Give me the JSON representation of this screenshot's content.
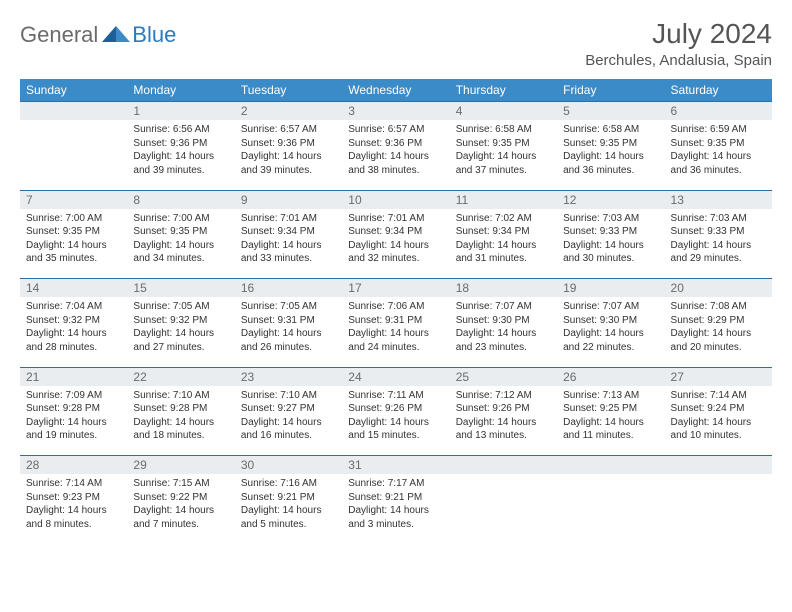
{
  "logo": {
    "text1": "General",
    "text2": "Blue"
  },
  "title": {
    "month": "July 2024",
    "location": "Berchules, Andalusia, Spain"
  },
  "colors": {
    "header_bg": "#3b8bc9",
    "header_text": "#ffffff",
    "daynum_bg": "#e9edf0",
    "daynum_text": "#6b6b6b",
    "border": "#2e6fa3",
    "body_text": "#333333",
    "logo_gray": "#6b6b6b",
    "logo_blue": "#2a7bbf"
  },
  "weekdays": [
    "Sunday",
    "Monday",
    "Tuesday",
    "Wednesday",
    "Thursday",
    "Friday",
    "Saturday"
  ],
  "weeks": [
    [
      null,
      {
        "n": "1",
        "sr": "Sunrise: 6:56 AM",
        "ss": "Sunset: 9:36 PM",
        "d1": "Daylight: 14 hours",
        "d2": "and 39 minutes."
      },
      {
        "n": "2",
        "sr": "Sunrise: 6:57 AM",
        "ss": "Sunset: 9:36 PM",
        "d1": "Daylight: 14 hours",
        "d2": "and 39 minutes."
      },
      {
        "n": "3",
        "sr": "Sunrise: 6:57 AM",
        "ss": "Sunset: 9:36 PM",
        "d1": "Daylight: 14 hours",
        "d2": "and 38 minutes."
      },
      {
        "n": "4",
        "sr": "Sunrise: 6:58 AM",
        "ss": "Sunset: 9:35 PM",
        "d1": "Daylight: 14 hours",
        "d2": "and 37 minutes."
      },
      {
        "n": "5",
        "sr": "Sunrise: 6:58 AM",
        "ss": "Sunset: 9:35 PM",
        "d1": "Daylight: 14 hours",
        "d2": "and 36 minutes."
      },
      {
        "n": "6",
        "sr": "Sunrise: 6:59 AM",
        "ss": "Sunset: 9:35 PM",
        "d1": "Daylight: 14 hours",
        "d2": "and 36 minutes."
      }
    ],
    [
      {
        "n": "7",
        "sr": "Sunrise: 7:00 AM",
        "ss": "Sunset: 9:35 PM",
        "d1": "Daylight: 14 hours",
        "d2": "and 35 minutes."
      },
      {
        "n": "8",
        "sr": "Sunrise: 7:00 AM",
        "ss": "Sunset: 9:35 PM",
        "d1": "Daylight: 14 hours",
        "d2": "and 34 minutes."
      },
      {
        "n": "9",
        "sr": "Sunrise: 7:01 AM",
        "ss": "Sunset: 9:34 PM",
        "d1": "Daylight: 14 hours",
        "d2": "and 33 minutes."
      },
      {
        "n": "10",
        "sr": "Sunrise: 7:01 AM",
        "ss": "Sunset: 9:34 PM",
        "d1": "Daylight: 14 hours",
        "d2": "and 32 minutes."
      },
      {
        "n": "11",
        "sr": "Sunrise: 7:02 AM",
        "ss": "Sunset: 9:34 PM",
        "d1": "Daylight: 14 hours",
        "d2": "and 31 minutes."
      },
      {
        "n": "12",
        "sr": "Sunrise: 7:03 AM",
        "ss": "Sunset: 9:33 PM",
        "d1": "Daylight: 14 hours",
        "d2": "and 30 minutes."
      },
      {
        "n": "13",
        "sr": "Sunrise: 7:03 AM",
        "ss": "Sunset: 9:33 PM",
        "d1": "Daylight: 14 hours",
        "d2": "and 29 minutes."
      }
    ],
    [
      {
        "n": "14",
        "sr": "Sunrise: 7:04 AM",
        "ss": "Sunset: 9:32 PM",
        "d1": "Daylight: 14 hours",
        "d2": "and 28 minutes."
      },
      {
        "n": "15",
        "sr": "Sunrise: 7:05 AM",
        "ss": "Sunset: 9:32 PM",
        "d1": "Daylight: 14 hours",
        "d2": "and 27 minutes."
      },
      {
        "n": "16",
        "sr": "Sunrise: 7:05 AM",
        "ss": "Sunset: 9:31 PM",
        "d1": "Daylight: 14 hours",
        "d2": "and 26 minutes."
      },
      {
        "n": "17",
        "sr": "Sunrise: 7:06 AM",
        "ss": "Sunset: 9:31 PM",
        "d1": "Daylight: 14 hours",
        "d2": "and 24 minutes."
      },
      {
        "n": "18",
        "sr": "Sunrise: 7:07 AM",
        "ss": "Sunset: 9:30 PM",
        "d1": "Daylight: 14 hours",
        "d2": "and 23 minutes."
      },
      {
        "n": "19",
        "sr": "Sunrise: 7:07 AM",
        "ss": "Sunset: 9:30 PM",
        "d1": "Daylight: 14 hours",
        "d2": "and 22 minutes."
      },
      {
        "n": "20",
        "sr": "Sunrise: 7:08 AM",
        "ss": "Sunset: 9:29 PM",
        "d1": "Daylight: 14 hours",
        "d2": "and 20 minutes."
      }
    ],
    [
      {
        "n": "21",
        "sr": "Sunrise: 7:09 AM",
        "ss": "Sunset: 9:28 PM",
        "d1": "Daylight: 14 hours",
        "d2": "and 19 minutes."
      },
      {
        "n": "22",
        "sr": "Sunrise: 7:10 AM",
        "ss": "Sunset: 9:28 PM",
        "d1": "Daylight: 14 hours",
        "d2": "and 18 minutes."
      },
      {
        "n": "23",
        "sr": "Sunrise: 7:10 AM",
        "ss": "Sunset: 9:27 PM",
        "d1": "Daylight: 14 hours",
        "d2": "and 16 minutes."
      },
      {
        "n": "24",
        "sr": "Sunrise: 7:11 AM",
        "ss": "Sunset: 9:26 PM",
        "d1": "Daylight: 14 hours",
        "d2": "and 15 minutes."
      },
      {
        "n": "25",
        "sr": "Sunrise: 7:12 AM",
        "ss": "Sunset: 9:26 PM",
        "d1": "Daylight: 14 hours",
        "d2": "and 13 minutes."
      },
      {
        "n": "26",
        "sr": "Sunrise: 7:13 AM",
        "ss": "Sunset: 9:25 PM",
        "d1": "Daylight: 14 hours",
        "d2": "and 11 minutes."
      },
      {
        "n": "27",
        "sr": "Sunrise: 7:14 AM",
        "ss": "Sunset: 9:24 PM",
        "d1": "Daylight: 14 hours",
        "d2": "and 10 minutes."
      }
    ],
    [
      {
        "n": "28",
        "sr": "Sunrise: 7:14 AM",
        "ss": "Sunset: 9:23 PM",
        "d1": "Daylight: 14 hours",
        "d2": "and 8 minutes."
      },
      {
        "n": "29",
        "sr": "Sunrise: 7:15 AM",
        "ss": "Sunset: 9:22 PM",
        "d1": "Daylight: 14 hours",
        "d2": "and 7 minutes."
      },
      {
        "n": "30",
        "sr": "Sunrise: 7:16 AM",
        "ss": "Sunset: 9:21 PM",
        "d1": "Daylight: 14 hours",
        "d2": "and 5 minutes."
      },
      {
        "n": "31",
        "sr": "Sunrise: 7:17 AM",
        "ss": "Sunset: 9:21 PM",
        "d1": "Daylight: 14 hours",
        "d2": "and 3 minutes."
      },
      null,
      null,
      null
    ]
  ]
}
